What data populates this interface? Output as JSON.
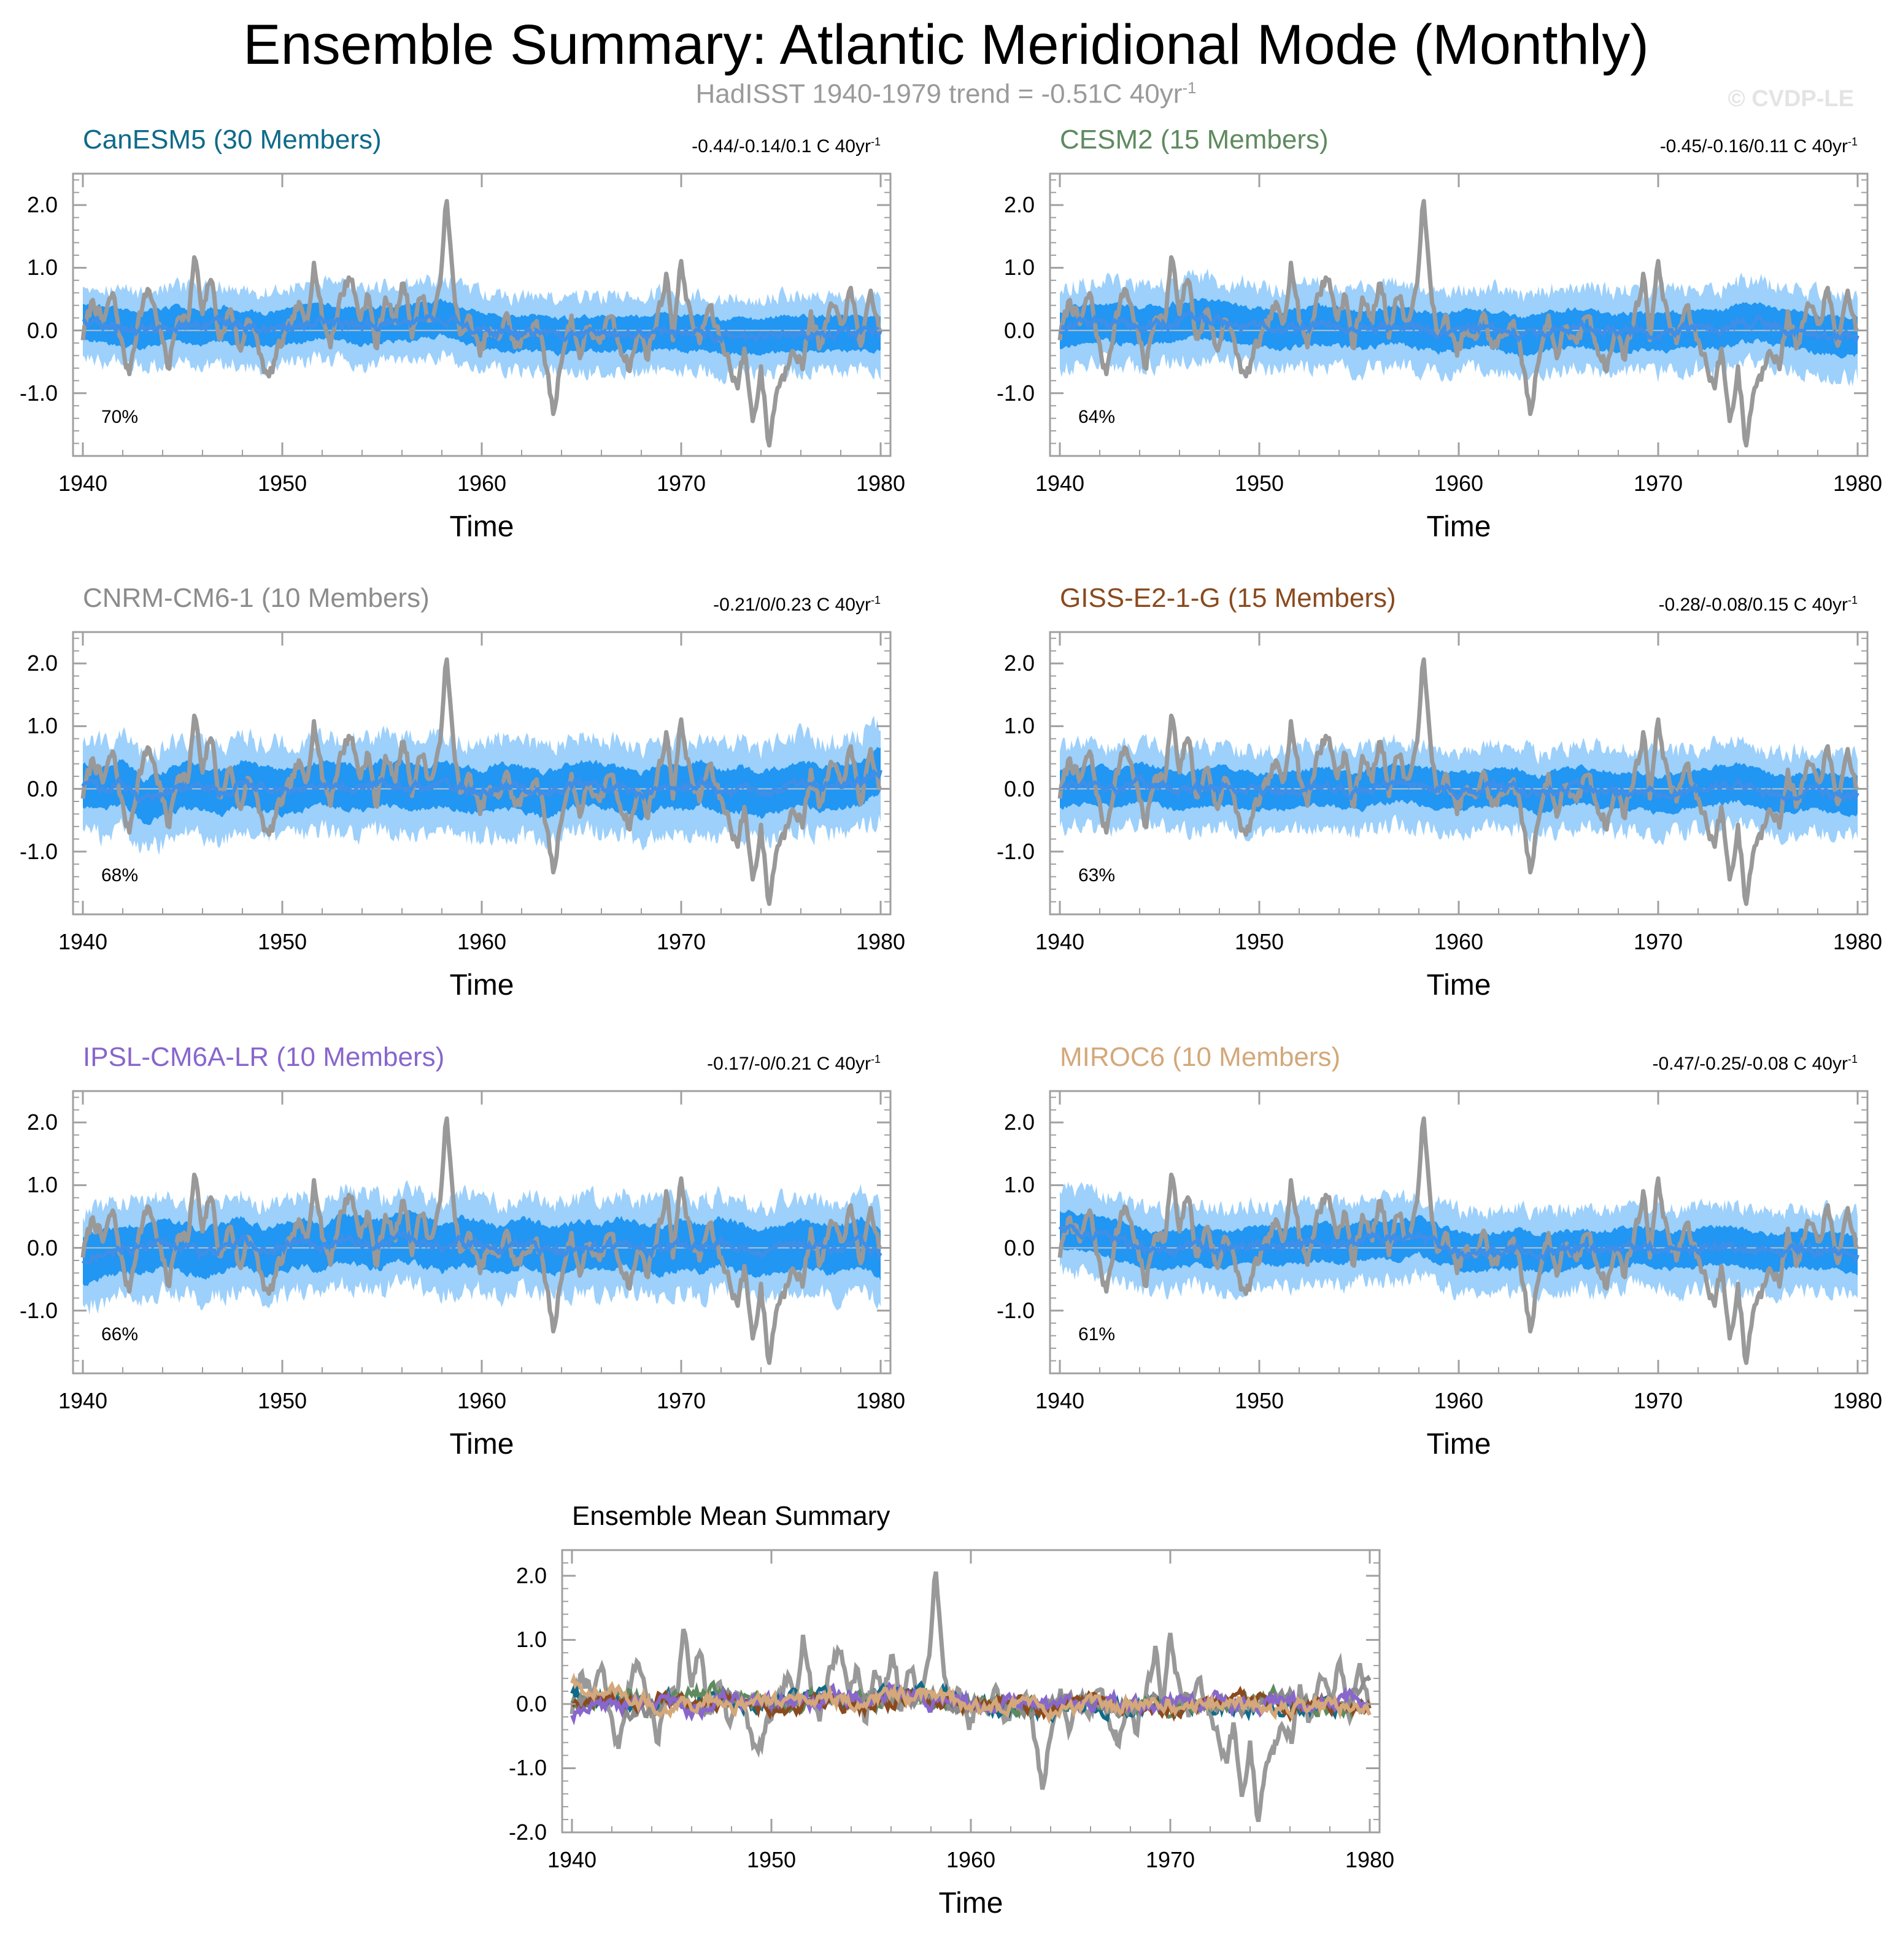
{
  "title": "Ensemble Summary: Atlantic Meridional Mode (Monthly)",
  "subtitle": "HadISST 1940-1979 trend = -0.51C 40yr",
  "subtitle_sup": "-1",
  "copyright": "© CVDP-LE",
  "colors": {
    "observed": "#999999",
    "ensemble_mean": "#3d8fe8",
    "band_inner": "#2196f3",
    "band_outer": "#9dd0fb",
    "axis": "#a0a0a0"
  },
  "chart_data": [
    {
      "type": "line",
      "title": "CanESM5 (30 Members)",
      "title_color": "#0f6a8a",
      "trend": "-0.44/-0.14/0.1 C 40yr",
      "trend_sup": "-1",
      "percent": "70%",
      "xlabel": "Time",
      "xlim": [
        1940,
        1980
      ],
      "ylim": [
        -2.0,
        2.5
      ],
      "x_ticks": [
        "1940",
        "1950",
        "1960",
        "1970",
        "1980"
      ],
      "y_ticks": [
        "2.0",
        "1.0",
        "0.0",
        "-1.0"
      ],
      "series": [
        {
          "x": [
            1940,
            1941,
            1942,
            1943,
            1944,
            1945,
            1946,
            1947,
            1948,
            1949,
            1950,
            1951,
            1952,
            1953,
            1954,
            1955,
            1956,
            1957,
            1958,
            1959,
            1960,
            1961,
            1962,
            1963,
            1964,
            1965,
            1966,
            1967,
            1968,
            1969,
            1970,
            1971,
            1972,
            1973,
            1974,
            1975,
            1976,
            1977,
            1978,
            1979,
            1980
          ],
          "values": [
            0.15,
            0.1,
            0.05,
            0.0,
            0.08,
            0.1,
            0.05,
            0.1,
            0.05,
            0.0,
            0.05,
            0.1,
            0.15,
            0.1,
            0.05,
            0.1,
            0.12,
            0.15,
            0.2,
            0.1,
            0.0,
            -0.05,
            -0.05,
            -0.05,
            -0.1,
            -0.05,
            -0.05,
            -0.05,
            -0.05,
            0.0,
            -0.05,
            -0.05,
            -0.1,
            -0.1,
            -0.1,
            -0.05,
            -0.05,
            -0.05,
            -0.05,
            -0.05,
            -0.05
          ],
          "band_inner": 0.28,
          "band_outer": 0.6
        }
      ]
    },
    {
      "type": "line",
      "title": "CESM2 (15 Members)",
      "title_color": "#5e8a5e",
      "trend": "-0.45/-0.16/0.11 C 40yr",
      "trend_sup": "-1",
      "percent": "64%",
      "xlabel": "Time",
      "xlim": [
        1940,
        1980
      ],
      "ylim": [
        -2.0,
        2.5
      ],
      "x_ticks": [
        "1940",
        "1950",
        "1960",
        "1970",
        "1980"
      ],
      "y_ticks": [
        "2.0",
        "1.0",
        "0.0",
        "-1.0"
      ],
      "series": [
        {
          "x": [
            1940,
            1941,
            1942,
            1943,
            1944,
            1945,
            1946,
            1947,
            1948,
            1949,
            1950,
            1951,
            1952,
            1953,
            1954,
            1955,
            1956,
            1957,
            1958,
            1959,
            1960,
            1961,
            1962,
            1963,
            1964,
            1965,
            1966,
            1967,
            1968,
            1969,
            1970,
            1971,
            1972,
            1973,
            1974,
            1975,
            1976,
            1977,
            1978,
            1979,
            1980
          ],
          "values": [
            0.0,
            0.1,
            0.15,
            0.1,
            0.05,
            0.1,
            0.15,
            0.2,
            0.15,
            0.1,
            0.05,
            0.0,
            0.05,
            0.1,
            0.05,
            0.0,
            0.05,
            0.1,
            0.0,
            -0.05,
            0.0,
            0.05,
            0.0,
            -0.1,
            -0.05,
            0.0,
            0.05,
            0.0,
            -0.05,
            0.0,
            -0.05,
            0.0,
            0.05,
            0.0,
            0.1,
            0.15,
            0.05,
            0.0,
            -0.05,
            -0.1,
            -0.1
          ],
          "band_inner": 0.3,
          "band_outer": 0.65
        }
      ]
    },
    {
      "type": "line",
      "title": "CNRM-CM6-1 (10 Members)",
      "title_color": "#8c8c8c",
      "trend": "-0.21/0/0.23 C 40yr",
      "trend_sup": "-1",
      "percent": "68%",
      "xlabel": "Time",
      "xlim": [
        1940,
        1980
      ],
      "ylim": [
        -2.0,
        2.5
      ],
      "x_ticks": [
        "1940",
        "1950",
        "1960",
        "1970",
        "1980"
      ],
      "y_ticks": [
        "2.0",
        "1.0",
        "0.0",
        "-1.0"
      ],
      "series": [
        {
          "x": [
            1940,
            1941,
            1942,
            1943,
            1944,
            1945,
            1946,
            1947,
            1948,
            1949,
            1950,
            1951,
            1952,
            1953,
            1954,
            1955,
            1956,
            1957,
            1958,
            1959,
            1960,
            1961,
            1962,
            1963,
            1964,
            1965,
            1966,
            1967,
            1968,
            1969,
            1970,
            1971,
            1972,
            1973,
            1974,
            1975,
            1976,
            1977,
            1978,
            1979,
            1980
          ],
          "values": [
            0.05,
            0.0,
            0.1,
            -0.2,
            -0.1,
            0.05,
            0.0,
            -0.05,
            0.1,
            0.0,
            -0.05,
            0.0,
            0.1,
            0.05,
            0.0,
            0.1,
            0.05,
            0.0,
            0.1,
            0.0,
            -0.05,
            0.05,
            0.0,
            -0.1,
            0.0,
            0.1,
            0.05,
            0.0,
            -0.1,
            0.05,
            0.0,
            0.1,
            -0.05,
            0.0,
            -0.1,
            0.0,
            0.1,
            0.0,
            0.05,
            0.1,
            0.3
          ],
          "band_inner": 0.35,
          "band_outer": 0.75
        }
      ]
    },
    {
      "type": "line",
      "title": "GISS-E2-1-G (15 Members)",
      "title_color": "#8a4a1e",
      "trend": "-0.28/-0.08/0.15 C 40yr",
      "trend_sup": "-1",
      "percent": "63%",
      "xlabel": "Time",
      "xlim": [
        1940,
        1980
      ],
      "ylim": [
        -2.0,
        2.5
      ],
      "x_ticks": [
        "1940",
        "1950",
        "1960",
        "1970",
        "1980"
      ],
      "y_ticks": [
        "2.0",
        "1.0",
        "0.0",
        "-1.0"
      ],
      "series": [
        {
          "x": [
            1940,
            1941,
            1942,
            1943,
            1944,
            1945,
            1946,
            1947,
            1948,
            1949,
            1950,
            1951,
            1952,
            1953,
            1954,
            1955,
            1956,
            1957,
            1958,
            1959,
            1960,
            1961,
            1962,
            1963,
            1964,
            1965,
            1966,
            1967,
            1968,
            1969,
            1970,
            1971,
            1972,
            1973,
            1974,
            1975,
            1976,
            1977,
            1978,
            1979,
            1980
          ],
          "values": [
            0.0,
            0.05,
            0.05,
            0.0,
            0.1,
            0.05,
            -0.05,
            0.0,
            0.05,
            0.0,
            -0.05,
            -0.05,
            0.0,
            0.05,
            0.0,
            -0.05,
            0.05,
            0.1,
            0.05,
            0.0,
            -0.05,
            0.0,
            0.05,
            0.0,
            -0.1,
            0.0,
            0.05,
            0.0,
            -0.05,
            0.0,
            -0.1,
            -0.05,
            0.0,
            0.05,
            0.1,
            0.0,
            -0.1,
            -0.05,
            0.0,
            -0.1,
            -0.1
          ],
          "band_inner": 0.3,
          "band_outer": 0.65
        }
      ]
    },
    {
      "type": "line",
      "title": "IPSL-CM6A-LR (10 Members)",
      "title_color": "#8866cc",
      "trend": "-0.17/-0/0.21 C 40yr",
      "trend_sup": "-1",
      "percent": "66%",
      "xlabel": "Time",
      "xlim": [
        1940,
        1980
      ],
      "ylim": [
        -2.0,
        2.5
      ],
      "x_ticks": [
        "1940",
        "1950",
        "1960",
        "1970",
        "1980"
      ],
      "y_ticks": [
        "2.0",
        "1.0",
        "0.0",
        "-1.0"
      ],
      "series": [
        {
          "x": [
            1940,
            1941,
            1942,
            1943,
            1944,
            1945,
            1946,
            1947,
            1948,
            1949,
            1950,
            1951,
            1952,
            1953,
            1954,
            1955,
            1956,
            1957,
            1958,
            1959,
            1960,
            1961,
            1962,
            1963,
            1964,
            1965,
            1966,
            1967,
            1968,
            1969,
            1970,
            1971,
            1972,
            1973,
            1974,
            1975,
            1976,
            1977,
            1978,
            1979,
            1980
          ],
          "values": [
            -0.2,
            -0.1,
            0.0,
            -0.05,
            0.1,
            0.0,
            -0.1,
            0.0,
            0.1,
            -0.05,
            0.0,
            0.1,
            0.0,
            0.15,
            0.1,
            0.05,
            0.2,
            0.1,
            0.0,
            0.1,
            0.05,
            -0.05,
            0.1,
            0.0,
            -0.05,
            0.05,
            0.0,
            0.1,
            0.0,
            -0.05,
            0.05,
            0.0,
            0.1,
            0.0,
            -0.1,
            0.0,
            0.05,
            0.0,
            -0.05,
            0.1,
            -0.1
          ],
          "band_inner": 0.38,
          "band_outer": 0.75
        }
      ]
    },
    {
      "type": "line",
      "title": "MIROC6 (10 Members)",
      "title_color": "#d4a87a",
      "trend": "-0.47/-0.25/-0.08 C 40yr",
      "trend_sup": "-1",
      "percent": "61%",
      "xlabel": "Time",
      "xlim": [
        1940,
        1980
      ],
      "ylim": [
        -2.0,
        2.5
      ],
      "x_ticks": [
        "1940",
        "1950",
        "1960",
        "1970",
        "1980"
      ],
      "y_ticks": [
        "2.0",
        "1.0",
        "0.0",
        "-1.0"
      ],
      "series": [
        {
          "x": [
            1940,
            1941,
            1942,
            1943,
            1944,
            1945,
            1946,
            1947,
            1948,
            1949,
            1950,
            1951,
            1952,
            1953,
            1954,
            1955,
            1956,
            1957,
            1958,
            1959,
            1960,
            1961,
            1962,
            1963,
            1964,
            1965,
            1966,
            1967,
            1968,
            1969,
            1970,
            1971,
            1972,
            1973,
            1974,
            1975,
            1976,
            1977,
            1978,
            1979,
            1980
          ],
          "values": [
            0.3,
            0.25,
            0.2,
            0.1,
            0.0,
            -0.05,
            0.0,
            0.05,
            -0.05,
            0.0,
            0.05,
            0.0,
            0.05,
            0.1,
            0.05,
            0.1,
            0.15,
            0.1,
            0.2,
            0.05,
            -0.05,
            -0.1,
            -0.05,
            0.0,
            -0.1,
            -0.05,
            0.0,
            -0.05,
            0.0,
            0.05,
            0.0,
            -0.05,
            0.0,
            0.05,
            0.0,
            -0.05,
            -0.1,
            0.0,
            -0.05,
            -0.05,
            -0.1
          ],
          "band_inner": 0.3,
          "band_outer": 0.65
        }
      ]
    },
    {
      "type": "line",
      "title": "Ensemble Mean Summary",
      "xlabel": "Time",
      "xlim": [
        1940,
        1980
      ],
      "ylim": [
        -2.0,
        2.4
      ],
      "x_ticks": [
        "1940",
        "1950",
        "1960",
        "1970",
        "1980"
      ],
      "y_ticks": [
        "2.0",
        "1.0",
        "0.0",
        "-1.0",
        "-2.0"
      ],
      "series_colors": [
        "#0f6a8a",
        "#5e8a5e",
        "#8c8c8c",
        "#8a4a1e",
        "#8866cc",
        "#d4a87a"
      ]
    }
  ]
}
